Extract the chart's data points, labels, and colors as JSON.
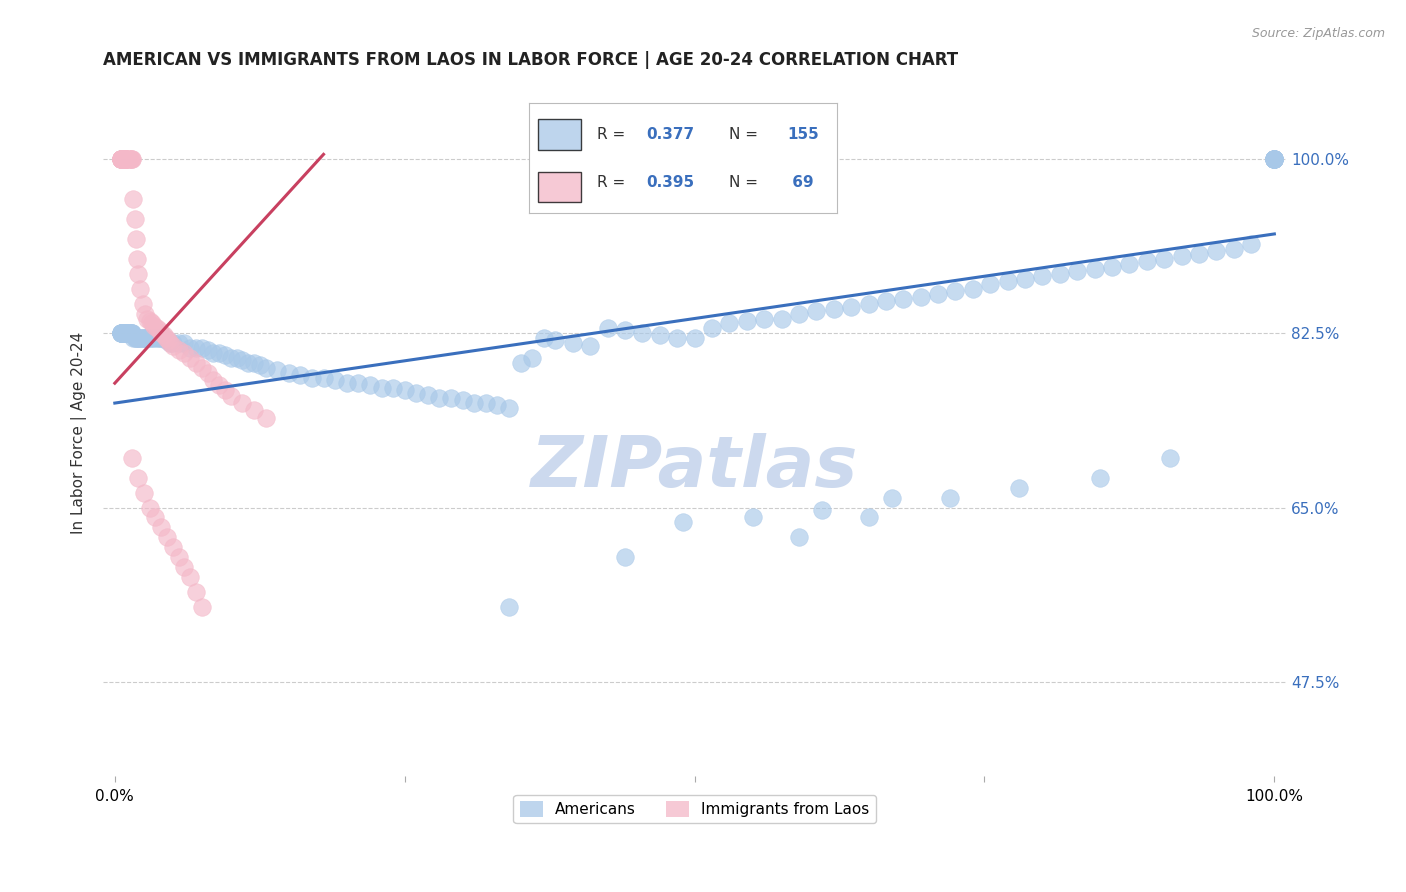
{
  "title": "AMERICAN VS IMMIGRANTS FROM LAOS IN LABOR FORCE | AGE 20-24 CORRELATION CHART",
  "source_text": "Source: ZipAtlas.com",
  "ylabel": "In Labor Force | Age 20-24",
  "watermark": "ZIPatlas",
  "blue_color": "#a8c8e8",
  "pink_color": "#f4b8c8",
  "blue_line_color": "#3a6fbd",
  "pink_line_color": "#c84060",
  "blue_R": 0.377,
  "blue_N": 155,
  "pink_R": 0.395,
  "pink_N": 69,
  "ytick_labels": [
    "47.5%",
    "65.0%",
    "82.5%",
    "100.0%"
  ],
  "ytick_values": [
    0.475,
    0.65,
    0.825,
    1.0
  ],
  "blue_trend_x": [
    0.0,
    1.0
  ],
  "blue_trend_y": [
    0.755,
    0.925
  ],
  "pink_trend_x": [
    0.0,
    0.18
  ],
  "pink_trend_y": [
    0.775,
    1.005
  ],
  "xlim": [
    -0.01,
    1.01
  ],
  "ylim": [
    0.38,
    1.07
  ],
  "title_fontsize": 12,
  "label_fontsize": 11,
  "tick_fontsize": 11,
  "watermark_fontsize": 52,
  "watermark_color": "#ccd9ee",
  "background_color": "#ffffff",
  "blue_scatter_x": [
    0.005,
    0.005,
    0.005,
    0.005,
    0.005,
    0.005,
    0.007,
    0.008,
    0.009,
    0.01,
    0.01,
    0.01,
    0.01,
    0.012,
    0.012,
    0.013,
    0.014,
    0.015,
    0.015,
    0.015,
    0.016,
    0.017,
    0.018,
    0.019,
    0.02,
    0.021,
    0.022,
    0.023,
    0.024,
    0.025,
    0.026,
    0.027,
    0.028,
    0.029,
    0.03,
    0.032,
    0.034,
    0.036,
    0.038,
    0.04,
    0.042,
    0.044,
    0.046,
    0.048,
    0.05,
    0.055,
    0.06,
    0.065,
    0.07,
    0.075,
    0.08,
    0.085,
    0.09,
    0.095,
    0.1,
    0.105,
    0.11,
    0.115,
    0.12,
    0.125,
    0.13,
    0.14,
    0.15,
    0.16,
    0.17,
    0.18,
    0.19,
    0.2,
    0.21,
    0.22,
    0.23,
    0.24,
    0.25,
    0.26,
    0.27,
    0.28,
    0.29,
    0.3,
    0.31,
    0.32,
    0.33,
    0.34,
    0.35,
    0.36,
    0.37,
    0.38,
    0.395,
    0.41,
    0.425,
    0.44,
    0.455,
    0.47,
    0.485,
    0.5,
    0.515,
    0.53,
    0.545,
    0.56,
    0.575,
    0.59,
    0.605,
    0.62,
    0.635,
    0.65,
    0.665,
    0.68,
    0.695,
    0.71,
    0.725,
    0.74,
    0.755,
    0.77,
    0.785,
    0.8,
    0.815,
    0.83,
    0.845,
    0.86,
    0.875,
    0.89,
    0.905,
    0.92,
    0.935,
    0.95,
    0.965,
    0.98,
    1.0,
    1.0,
    1.0,
    1.0,
    1.0,
    1.0,
    1.0,
    1.0,
    1.0,
    1.0,
    1.0,
    1.0,
    1.0,
    1.0,
    0.49,
    0.55,
    0.61,
    0.67,
    0.34,
    0.44,
    0.59,
    0.65,
    0.72,
    0.78,
    0.85,
    0.91
  ],
  "blue_scatter_y": [
    0.825,
    0.825,
    0.825,
    0.825,
    0.825,
    0.825,
    0.825,
    0.825,
    0.825,
    0.825,
    0.825,
    0.825,
    0.825,
    0.825,
    0.825,
    0.825,
    0.825,
    0.825,
    0.825,
    0.825,
    0.82,
    0.82,
    0.82,
    0.82,
    0.82,
    0.82,
    0.82,
    0.82,
    0.82,
    0.82,
    0.82,
    0.82,
    0.82,
    0.82,
    0.82,
    0.82,
    0.82,
    0.82,
    0.82,
    0.82,
    0.82,
    0.818,
    0.818,
    0.815,
    0.815,
    0.815,
    0.815,
    0.81,
    0.81,
    0.81,
    0.808,
    0.805,
    0.805,
    0.803,
    0.8,
    0.8,
    0.798,
    0.795,
    0.795,
    0.793,
    0.79,
    0.788,
    0.785,
    0.783,
    0.78,
    0.78,
    0.778,
    0.775,
    0.775,
    0.773,
    0.77,
    0.77,
    0.768,
    0.765,
    0.763,
    0.76,
    0.76,
    0.758,
    0.755,
    0.755,
    0.753,
    0.75,
    0.795,
    0.8,
    0.82,
    0.818,
    0.815,
    0.812,
    0.83,
    0.828,
    0.825,
    0.823,
    0.82,
    0.82,
    0.83,
    0.835,
    0.838,
    0.84,
    0.84,
    0.845,
    0.848,
    0.85,
    0.852,
    0.855,
    0.858,
    0.86,
    0.862,
    0.865,
    0.868,
    0.87,
    0.875,
    0.878,
    0.88,
    0.883,
    0.885,
    0.888,
    0.89,
    0.892,
    0.895,
    0.898,
    0.9,
    0.903,
    0.905,
    0.908,
    0.91,
    0.915,
    1.0,
    1.0,
    1.0,
    1.0,
    1.0,
    1.0,
    1.0,
    1.0,
    1.0,
    1.0,
    1.0,
    1.0,
    1.0,
    1.0,
    0.635,
    0.64,
    0.648,
    0.66,
    0.55,
    0.6,
    0.62,
    0.64,
    0.66,
    0.67,
    0.68,
    0.7
  ],
  "pink_scatter_x": [
    0.005,
    0.005,
    0.005,
    0.005,
    0.005,
    0.005,
    0.005,
    0.005,
    0.005,
    0.005,
    0.005,
    0.007,
    0.008,
    0.009,
    0.01,
    0.01,
    0.01,
    0.01,
    0.012,
    0.013,
    0.014,
    0.015,
    0.015,
    0.016,
    0.017,
    0.018,
    0.019,
    0.02,
    0.022,
    0.024,
    0.026,
    0.028,
    0.03,
    0.032,
    0.034,
    0.036,
    0.038,
    0.04,
    0.042,
    0.044,
    0.046,
    0.048,
    0.05,
    0.055,
    0.06,
    0.065,
    0.07,
    0.075,
    0.08,
    0.085,
    0.09,
    0.095,
    0.1,
    0.11,
    0.12,
    0.13,
    0.015,
    0.02,
    0.025,
    0.03,
    0.035,
    0.04,
    0.045,
    0.05,
    0.055,
    0.06,
    0.065,
    0.07,
    0.075
  ],
  "pink_scatter_y": [
    1.0,
    1.0,
    1.0,
    1.0,
    1.0,
    1.0,
    1.0,
    1.0,
    1.0,
    1.0,
    1.0,
    1.0,
    1.0,
    1.0,
    1.0,
    1.0,
    1.0,
    1.0,
    1.0,
    1.0,
    1.0,
    1.0,
    1.0,
    0.96,
    0.94,
    0.92,
    0.9,
    0.885,
    0.87,
    0.855,
    0.845,
    0.84,
    0.838,
    0.835,
    0.832,
    0.83,
    0.828,
    0.825,
    0.823,
    0.82,
    0.818,
    0.815,
    0.812,
    0.808,
    0.805,
    0.8,
    0.795,
    0.79,
    0.785,
    0.778,
    0.773,
    0.768,
    0.762,
    0.755,
    0.748,
    0.74,
    0.7,
    0.68,
    0.665,
    0.65,
    0.64,
    0.63,
    0.62,
    0.61,
    0.6,
    0.59,
    0.58,
    0.565,
    0.55
  ]
}
